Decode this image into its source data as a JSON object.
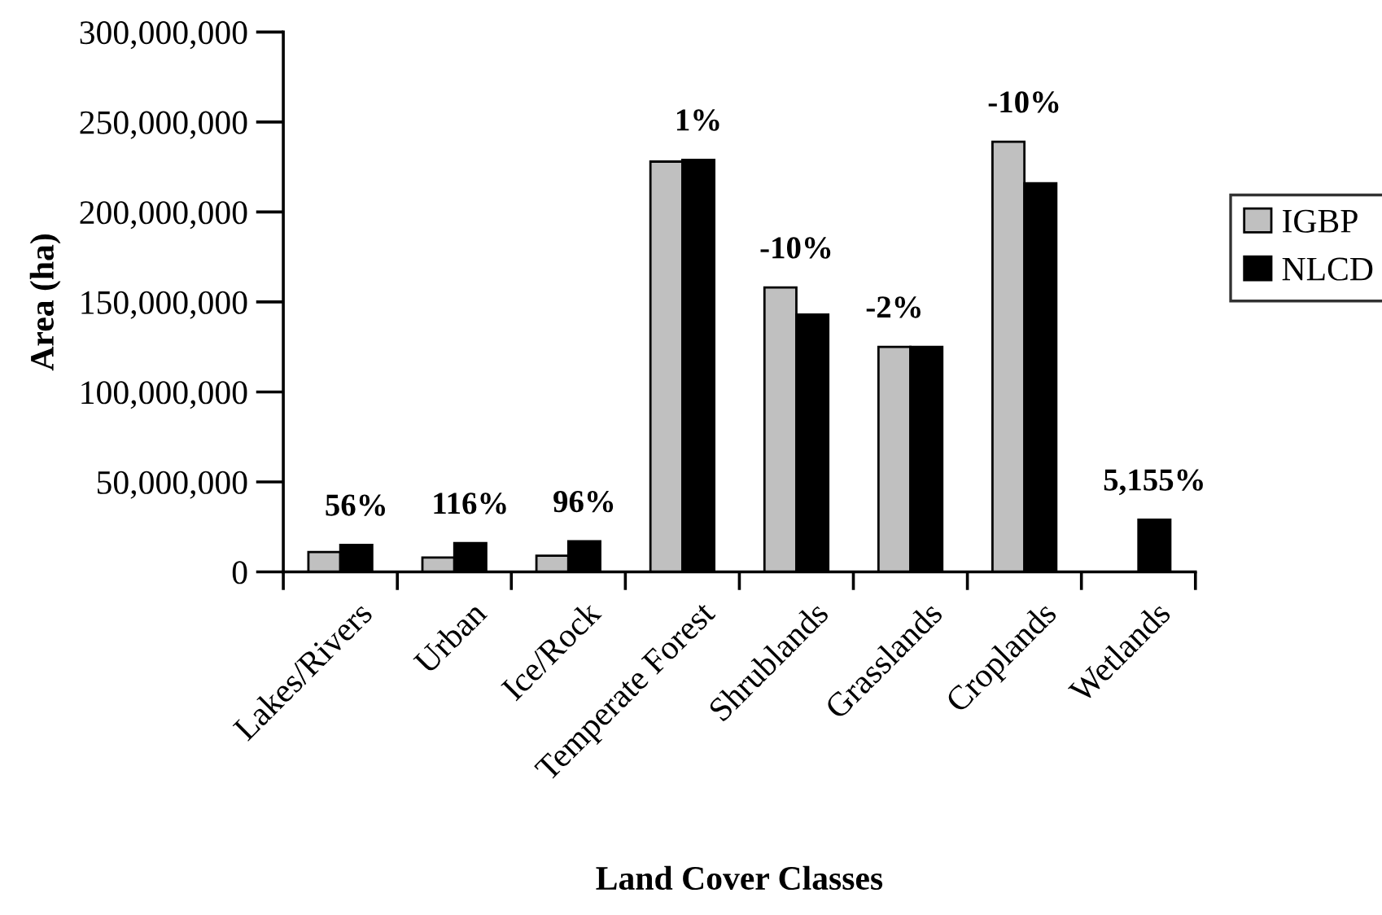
{
  "chart_data": {
    "type": "bar",
    "xlabel": "Land Cover Classes",
    "ylabel": "Area (ha)",
    "categories": [
      "Lakes/Rivers",
      "Urban",
      "Ice/Rock",
      "Temperate Forest",
      "Shrublands",
      "Grasslands",
      "Croplands",
      "Wetlands"
    ],
    "series": [
      {
        "name": "IGBP",
        "color": "#c0c0c0",
        "values": [
          11000000,
          8000000,
          9000000,
          228000000,
          158000000,
          125000000,
          239000000,
          null
        ]
      },
      {
        "name": "NLCD",
        "color": "#000000",
        "values": [
          15000000,
          16000000,
          17000000,
          229000000,
          143000000,
          125000000,
          216000000,
          29000000
        ]
      }
    ],
    "ylim": [
      0,
      300000000
    ],
    "yticks": [
      {
        "value": 0,
        "label": "0"
      },
      {
        "value": 50000000,
        "label": "50,000,000"
      },
      {
        "value": 100000000,
        "label": "100,000,000"
      },
      {
        "value": 150000000,
        "label": "150,000,000"
      },
      {
        "value": 200000000,
        "label": "200,000,000"
      },
      {
        "value": 250000000,
        "label": "250,000,000"
      },
      {
        "value": 300000000,
        "label": "300,000,000"
      }
    ],
    "annotations": [
      {
        "text": "56%",
        "x": "Lakes/Rivers",
        "y": 15000000
      },
      {
        "text": "116%",
        "x": "Urban",
        "y": 16000000
      },
      {
        "text": "96%",
        "x": "Ice/Rock",
        "y": 17000000
      },
      {
        "text": "1%",
        "x": "Temperate Forest",
        "y": 229000000
      },
      "-10%",
      {
        "text": "-2%",
        "x": "Grasslands",
        "y": 125000000
      },
      "-10%",
      {
        "text": "5,155%",
        "x": "Wetlands",
        "y": 29000000
      }
    ],
    "grid": false,
    "legend": "right"
  }
}
